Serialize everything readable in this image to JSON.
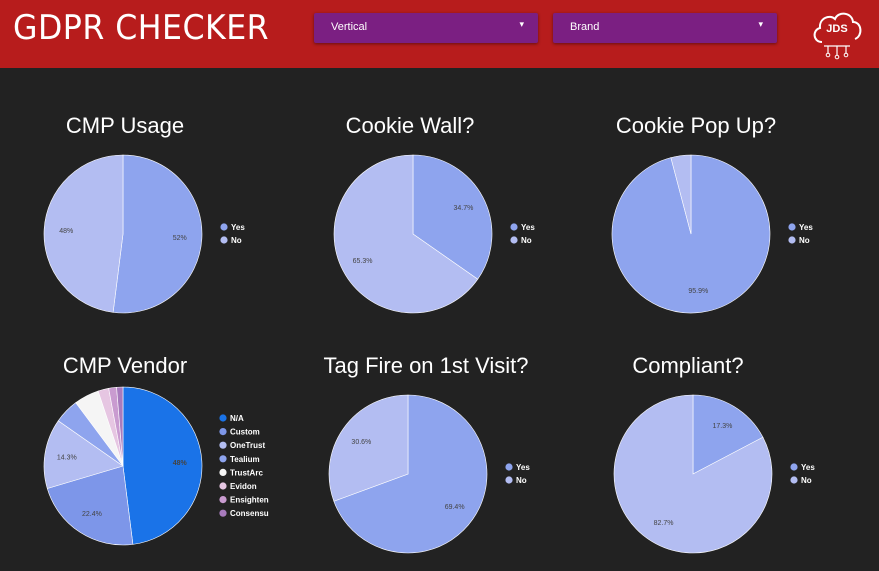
{
  "header": {
    "title": "GDPR CHECKER",
    "filters": [
      {
        "label": "Vertical"
      },
      {
        "label": "Brand"
      }
    ],
    "logo_text": "JDS",
    "background_color": "#b71c1c",
    "filter_color": "#7b1f82"
  },
  "chart_data": [
    {
      "type": "pie",
      "title": "CMP Usage",
      "categories": [
        "Yes",
        "No"
      ],
      "values": [
        52,
        48
      ],
      "labels": [
        "52%",
        "48%"
      ],
      "colors": [
        "#8ea4ee",
        "#b3bdf2"
      ],
      "legend": "right"
    },
    {
      "type": "pie",
      "title": "Cookie Wall?",
      "categories": [
        "Yes",
        "No"
      ],
      "values": [
        34.7,
        65.3
      ],
      "labels": [
        "34.7%",
        "65.3%"
      ],
      "colors": [
        "#8ea4ee",
        "#b3bdf2"
      ],
      "legend": "right"
    },
    {
      "type": "pie",
      "title": "Cookie Pop Up?",
      "categories": [
        "Yes",
        "No"
      ],
      "values": [
        95.9,
        4.1
      ],
      "labels": [
        "95.9%",
        ""
      ],
      "colors": [
        "#8ea4ee",
        "#b3bdf2"
      ],
      "legend": "right"
    },
    {
      "type": "pie",
      "title": "CMP Vendor",
      "categories": [
        "N/A",
        "Custom",
        "OneTrust",
        "Tealium",
        "TrustArc",
        "Evidon",
        "Ensighten",
        "Consensu"
      ],
      "values": [
        48,
        22.4,
        14.3,
        5.1,
        5.1,
        2.2,
        1.6,
        1.3
      ],
      "labels": [
        "48%",
        "22.4%",
        "14.3%",
        "",
        "",
        "",
        "",
        ""
      ],
      "colors": [
        "#1a73e8",
        "#7d96e9",
        "#b3bdf2",
        "#8ea4ee",
        "#f5f5f5",
        "#e6c6e2",
        "#c99bd0",
        "#a87bbd"
      ],
      "legend": "right"
    },
    {
      "type": "pie",
      "title": "Tag Fire on 1st Visit?",
      "categories": [
        "Yes",
        "No"
      ],
      "values": [
        69.4,
        30.6
      ],
      "labels": [
        "69.4%",
        "30.6%"
      ],
      "colors": [
        "#8ea4ee",
        "#b3bdf2"
      ],
      "legend": "right"
    },
    {
      "type": "pie",
      "title": "Compliant?",
      "categories": [
        "Yes",
        "No"
      ],
      "values": [
        17.3,
        82.7
      ],
      "labels": [
        "17.3%",
        "82.7%"
      ],
      "colors": [
        "#8ea4ee",
        "#b3bdf2"
      ],
      "legend": "right"
    }
  ]
}
